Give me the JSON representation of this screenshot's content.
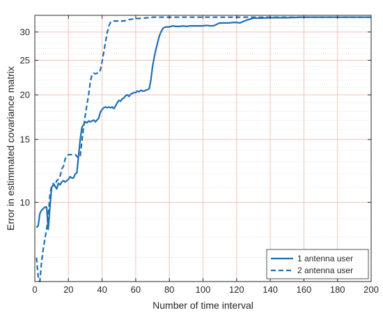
{
  "chart_data": {
    "type": "line",
    "title": "",
    "xlabel": "Number of time interval",
    "ylabel": "Error in estimmated covariance matrix",
    "xlim": [
      0,
      200
    ],
    "ylim": [
      6.0,
      33.4
    ],
    "yscale": "log",
    "grid": true,
    "legend_position": "bottom-right",
    "x_ticks": [
      0,
      20,
      40,
      60,
      80,
      100,
      120,
      140,
      160,
      180,
      200
    ],
    "x_tick_labels": [
      "0",
      "20",
      "40",
      "60",
      "80",
      "100",
      "120",
      "140",
      "160",
      "180",
      "200"
    ],
    "y_ticks": [
      10,
      15,
      20,
      25,
      30
    ],
    "y_tick_labels": [
      "10",
      "15",
      "20",
      "25",
      "30"
    ],
    "colors": {
      "series": "#1f6db3",
      "major_grid": "#f2c2b3",
      "minor_grid": "#c8c8c8",
      "axis": "#262626"
    },
    "series": [
      {
        "name": "1 antenna user",
        "style": "solid",
        "points": [
          [
            1,
            8.5
          ],
          [
            2,
            8.6
          ],
          [
            3,
            9.3
          ],
          [
            4,
            9.5
          ],
          [
            5,
            9.6
          ],
          [
            6,
            9.7
          ],
          [
            7,
            9.7
          ],
          [
            8,
            8.4
          ],
          [
            9,
            9.7
          ],
          [
            10,
            11.0
          ],
          [
            11,
            11.2
          ],
          [
            12,
            11.1
          ],
          [
            13,
            10.9
          ],
          [
            14,
            11.3
          ],
          [
            15,
            11.2
          ],
          [
            16,
            11.4
          ],
          [
            17,
            11.5
          ],
          [
            18,
            11.4
          ],
          [
            19,
            11.5
          ],
          [
            20,
            11.6
          ],
          [
            21,
            11.8
          ],
          [
            22,
            11.7
          ],
          [
            23,
            11.7
          ],
          [
            24,
            12.0
          ],
          [
            25,
            12.1
          ],
          [
            26,
            13.5
          ],
          [
            27,
            15.0
          ],
          [
            28,
            16.2
          ],
          [
            29,
            16.5
          ],
          [
            30,
            16.8
          ],
          [
            31,
            16.7
          ],
          [
            32,
            16.9
          ],
          [
            33,
            16.8
          ],
          [
            34,
            16.9
          ],
          [
            35,
            17.0
          ],
          [
            36,
            16.8
          ],
          [
            37,
            17.0
          ],
          [
            38,
            17.2
          ],
          [
            39,
            17.9
          ],
          [
            40,
            18.2
          ],
          [
            41,
            18.4
          ],
          [
            42,
            18.5
          ],
          [
            43,
            18.4
          ],
          [
            44,
            18.5
          ],
          [
            45,
            18.4
          ],
          [
            46,
            18.5
          ],
          [
            47,
            18.3
          ],
          [
            48,
            18.6
          ],
          [
            49,
            19.0
          ],
          [
            50,
            19.3
          ],
          [
            51,
            19.2
          ],
          [
            52,
            19.5
          ],
          [
            53,
            19.6
          ],
          [
            54,
            19.9
          ],
          [
            55,
            20.0
          ],
          [
            56,
            19.8
          ],
          [
            57,
            20.1
          ],
          [
            58,
            20.2
          ],
          [
            59,
            20.3
          ],
          [
            60,
            20.3
          ],
          [
            61,
            20.5
          ],
          [
            62,
            20.4
          ],
          [
            63,
            20.6
          ],
          [
            64,
            20.5
          ],
          [
            65,
            20.5
          ],
          [
            66,
            20.6
          ],
          [
            67,
            20.7
          ],
          [
            68,
            20.8
          ],
          [
            69,
            22.0
          ],
          [
            70,
            24.0
          ],
          [
            71,
            25.5
          ],
          [
            72,
            26.8
          ],
          [
            73,
            28.0
          ],
          [
            74,
            29.2
          ],
          [
            75,
            30.0
          ],
          [
            76,
            30.6
          ],
          [
            77,
            30.9
          ],
          [
            78,
            31.0
          ],
          [
            80,
            31.0
          ],
          [
            82,
            31.2
          ],
          [
            84,
            31.1
          ],
          [
            86,
            31.1
          ],
          [
            88,
            31.2
          ],
          [
            90,
            31.1
          ],
          [
            92,
            31.2
          ],
          [
            95,
            31.2
          ],
          [
            98,
            31.2
          ],
          [
            100,
            31.2
          ],
          [
            102,
            31.3
          ],
          [
            105,
            31.2
          ],
          [
            107,
            31.3
          ],
          [
            108,
            31.5
          ],
          [
            110,
            31.8
          ],
          [
            112,
            31.8
          ],
          [
            115,
            31.8
          ],
          [
            118,
            31.9
          ],
          [
            120,
            31.9
          ],
          [
            122,
            31.8
          ],
          [
            124,
            32.1
          ],
          [
            126,
            32.4
          ],
          [
            128,
            32.6
          ],
          [
            130,
            32.8
          ],
          [
            135,
            32.8
          ],
          [
            140,
            32.9
          ],
          [
            150,
            32.9
          ],
          [
            160,
            33.0
          ],
          [
            170,
            33.0
          ],
          [
            180,
            33.0
          ],
          [
            190,
            33.0
          ],
          [
            200,
            33.0
          ]
        ]
      },
      {
        "name": "2 antenna user",
        "style": "dashed",
        "points": [
          [
            1,
            7.0
          ],
          [
            2,
            6.2
          ],
          [
            3,
            6.0
          ],
          [
            4,
            6.8
          ],
          [
            5,
            7.4
          ],
          [
            6,
            7.9
          ],
          [
            7,
            8.4
          ],
          [
            8,
            9.2
          ],
          [
            9,
            10.5
          ],
          [
            10,
            11.1
          ],
          [
            11,
            11.3
          ],
          [
            12,
            11.1
          ],
          [
            13,
            11.5
          ],
          [
            14,
            11.6
          ],
          [
            15,
            11.8
          ],
          [
            16,
            12.4
          ],
          [
            17,
            12.6
          ],
          [
            18,
            13.2
          ],
          [
            19,
            13.5
          ],
          [
            20,
            13.6
          ],
          [
            24,
            13.6
          ],
          [
            26,
            13.3
          ],
          [
            27,
            13.5
          ],
          [
            28,
            14.8
          ],
          [
            29,
            16.2
          ],
          [
            30,
            17.5
          ],
          [
            31,
            18.8
          ],
          [
            32,
            20.0
          ],
          [
            33,
            21.7
          ],
          [
            34,
            22.8
          ],
          [
            35,
            23.0
          ],
          [
            36,
            22.9
          ],
          [
            37,
            23.0
          ],
          [
            38,
            23.0
          ],
          [
            39,
            23.5
          ],
          [
            40,
            24.8
          ],
          [
            41,
            26.4
          ],
          [
            42,
            28.0
          ],
          [
            43,
            29.8
          ],
          [
            44,
            31.2
          ],
          [
            45,
            31.9
          ],
          [
            46,
            32.2
          ],
          [
            50,
            32.2
          ],
          [
            53,
            32.2
          ],
          [
            56,
            32.5
          ],
          [
            60,
            32.7
          ],
          [
            65,
            32.8
          ],
          [
            70,
            33.0
          ],
          [
            80,
            33.0
          ],
          [
            100,
            33.0
          ],
          [
            120,
            33.0
          ],
          [
            140,
            33.0
          ],
          [
            160,
            33.0
          ],
          [
            180,
            33.0
          ],
          [
            200,
            33.0
          ]
        ]
      }
    ]
  }
}
